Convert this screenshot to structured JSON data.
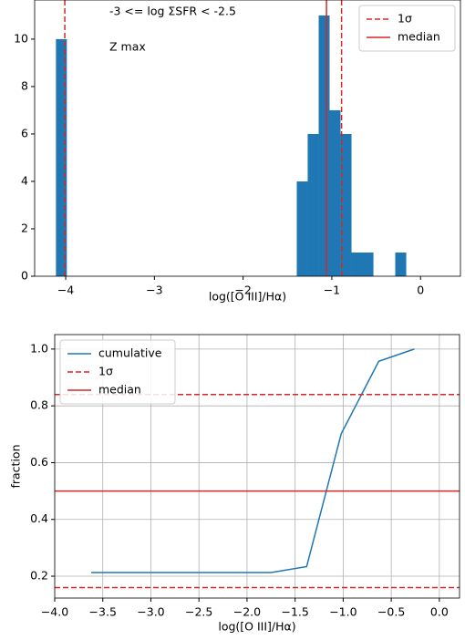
{
  "chart_data": [
    {
      "type": "histogram",
      "annotations": [
        "-3 <= log ΣSFR < -2.5",
        "Z max"
      ],
      "xlabel": "log([O III]/Hα)",
      "bins": [
        -4.11,
        -3.987,
        -3.863,
        -3.74,
        -3.616,
        -3.493,
        -3.37,
        -3.246,
        -3.123,
        -2.999,
        -2.876,
        -2.753,
        -2.629,
        -2.506,
        -2.382,
        -2.259,
        -2.136,
        -2.012,
        -1.889,
        -1.765,
        -1.642,
        -1.519,
        -1.395,
        -1.272,
        -1.148,
        -1.025,
        -0.902,
        -0.778,
        -0.655,
        -0.531,
        -0.408,
        -0.285,
        -0.161
      ],
      "values": [
        10,
        0,
        0,
        0,
        0,
        0,
        0,
        0,
        0,
        0,
        0,
        0,
        0,
        0,
        0,
        0,
        0,
        0,
        0,
        0,
        0,
        0,
        4,
        6,
        11,
        7,
        6,
        1,
        1,
        0,
        0,
        1
      ],
      "color": "#1f77b4",
      "vlines": [
        {
          "name": "1σ",
          "values": [
            -4.01,
            -0.89
          ],
          "color": "#d62728",
          "style": "dashed"
        },
        {
          "name": "median",
          "values": [
            -1.06
          ],
          "color": "#d62728",
          "style": "solid"
        }
      ],
      "xlim": [
        -4.35,
        0.45
      ],
      "ylim": [
        0,
        11.65
      ],
      "xticks": [
        {
          "value": -4,
          "label": "−4"
        },
        {
          "value": -3,
          "label": "−3"
        },
        {
          "value": -2,
          "label": "−2"
        },
        {
          "value": -1,
          "label": "−1"
        },
        0
      ],
      "yticks": [
        0,
        2,
        4,
        6,
        8,
        10
      ],
      "grid": false,
      "legend": "upper right"
    },
    {
      "type": "line",
      "xlabel": "log([O III]/Hα)",
      "ylabel": "fraction",
      "x": [
        -3.62,
        -1.75,
        -1.38,
        -1.02,
        -0.63,
        -0.26
      ],
      "series": [
        {
          "name": "cumulative",
          "color": "#1f77b4",
          "values": [
            0.213,
            0.213,
            0.234,
            0.702,
            0.957,
            1.0
          ]
        }
      ],
      "hlines": [
        {
          "name": "1σ",
          "values": [
            0.16,
            0.84
          ],
          "color": "#d62728",
          "style": "dashed"
        },
        {
          "name": "median",
          "values": [
            0.5
          ],
          "color": "#d62728",
          "style": "solid"
        }
      ],
      "xlim": [
        -4.0,
        0.21
      ],
      "ylim": [
        0.123,
        1.051
      ],
      "xticks": [
        {
          "value": -4.0,
          "label": "−4.0"
        },
        {
          "value": -3.5,
          "label": "−3.5"
        },
        {
          "value": -3.0,
          "label": "−3.0"
        },
        {
          "value": -2.5,
          "label": "−2.5"
        },
        {
          "value": -2.0,
          "label": "−2.0"
        },
        {
          "value": -1.5,
          "label": "−1.5"
        },
        {
          "value": -1.0,
          "label": "−1.0"
        },
        {
          "value": -0.5,
          "label": "−0.5"
        },
        {
          "value": 0,
          "label": "0.0"
        }
      ],
      "yticks": [
        0.2,
        0.4,
        0.6,
        0.8,
        {
          "value": 1.0,
          "label": "1.0"
        }
      ],
      "grid": true,
      "legend": "upper left"
    }
  ]
}
